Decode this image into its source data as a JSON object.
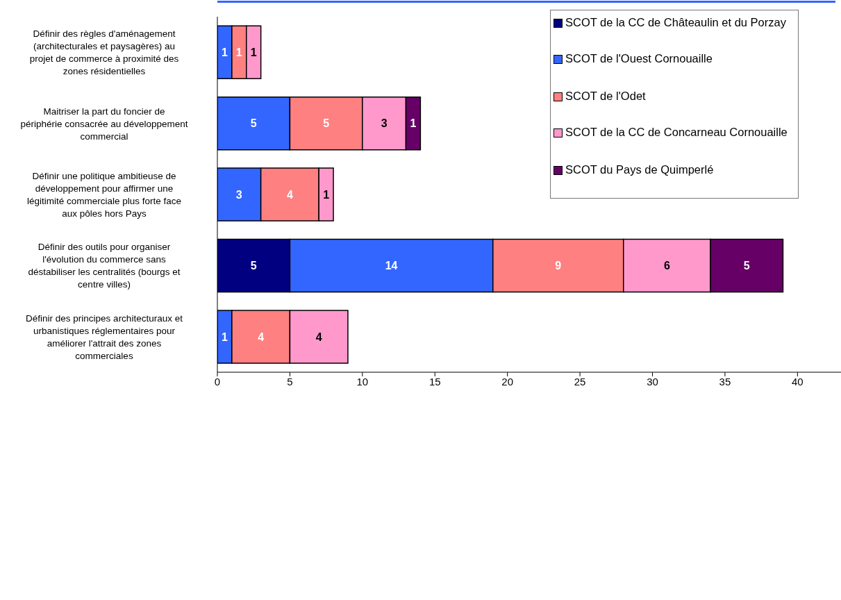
{
  "chart_data": {
    "type": "bar",
    "orientation": "horizontal",
    "stacked": true,
    "data_labels": true,
    "legend": "top right",
    "grid": false,
    "categories": [
      "Définir des règles d'aménagement (architecturales et paysagères) au projet de commerce à proximité des zones résidentielles",
      "Maitriser la part du foncier de périphérie consacrée au développement commercial",
      "Définir une politique ambitieuse de développement pour affirmer une légitimité commerciale plus forte face aux pôles hors Pays",
      "Définir des outils pour organiser l'évolution du commerce sans déstabiliser les centralités (bourgs et centre villes)",
      "Définir des principes architecturaux et urbanistiques réglementaires pour améliorer l'attrait des zones commerciales"
    ],
    "xlim": [
      0,
      43
    ],
    "xticks": [
      0,
      5,
      10,
      15,
      20,
      25,
      30,
      35,
      40
    ],
    "series": [
      {
        "name": "SCOT de la CC de Châteaulin et du Porzay",
        "color": "#000080",
        "values": [
          null,
          null,
          null,
          5,
          null
        ]
      },
      {
        "name": "SCOT de l'Ouest Cornouaille",
        "color": "#3366ff",
        "values": [
          1,
          5,
          3,
          14,
          1
        ]
      },
      {
        "name": "SCOT de l'Odet",
        "color": "#ff8080",
        "values": [
          1,
          5,
          4,
          9,
          4
        ]
      },
      {
        "name": "SCOT de la CC de Concarneau Cornouaille",
        "color": "#ff99cc",
        "values": [
          1,
          3,
          1,
          6,
          4
        ]
      },
      {
        "name": "SCOT du Pays de Quimperlé",
        "color": "#660066",
        "values": [
          null,
          1,
          null,
          5,
          null
        ]
      }
    ]
  }
}
